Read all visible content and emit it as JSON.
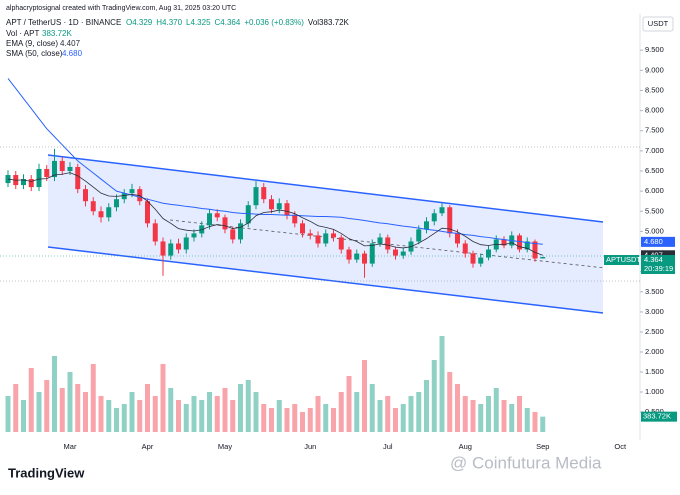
{
  "chart_data": {
    "type": "candlestick",
    "attribution": "alphacryptosignal created with TradingView.com, Aug 31, 2025 03:20 UTC",
    "symbol": "APT / TetherUS · 1D · BINANCE",
    "ohlc": [
      "O4.329",
      "H4.370",
      "L4.325",
      "C4.364",
      "+0.036 (+0.83%)",
      "Vol383.72K"
    ],
    "vol_legend": {
      "name": "Vol · APT",
      "value_label": "383.72K"
    },
    "ema": {
      "name": "EMA (9, close)",
      "color": "#2a2e39",
      "values": [
        6.3,
        6.27,
        6.28,
        6.24,
        6.3,
        6.31,
        6.4,
        6.42,
        6.46,
        6.38,
        6.25,
        6.1,
        5.95,
        5.88,
        5.87,
        5.89,
        5.92,
        5.89,
        5.75,
        5.55,
        5.32,
        5.2,
        5.07,
        5.03,
        5.01,
        5.04,
        5.12,
        5.17,
        5.14,
        5.07,
        5.1,
        5.21,
        5.39,
        5.47,
        5.49,
        5.53,
        5.5,
        5.44,
        5.34,
        5.25,
        5.14,
        5.1,
        5.05,
        4.95,
        4.82,
        4.75,
        4.64,
        4.65,
        4.69,
        4.66,
        4.61,
        4.59,
        4.62,
        4.71,
        4.82,
        4.95,
        5.08,
        5.06,
        4.99,
        4.88,
        4.75,
        4.67,
        4.65,
        4.68,
        4.67,
        4.72,
        4.62,
        4.58,
        4.48,
        4.407,
        null,
        null,
        null,
        null,
        null,
        null,
        null,
        null,
        null,
        null,
        null,
        null
      ]
    },
    "sma": {
      "name": "SMA (50, close)",
      "color": "#2962ff",
      "value_label": "4.680",
      "values": [
        8.8,
        8.55,
        8.3,
        8.05,
        7.8,
        7.55,
        7.35,
        7.15,
        6.95,
        6.75,
        6.6,
        6.45,
        6.3,
        6.15,
        6.0,
        5.95,
        5.9,
        5.85,
        5.8,
        5.75,
        5.7,
        5.67,
        5.65,
        5.62,
        5.6,
        5.57,
        5.55,
        5.52,
        5.5,
        5.47,
        5.45,
        5.44,
        5.43,
        5.42,
        5.42,
        5.41,
        5.4,
        5.4,
        5.39,
        5.38,
        5.37,
        5.37,
        5.36,
        5.35,
        5.32,
        5.3,
        5.27,
        5.24,
        5.21,
        5.19,
        5.16,
        5.13,
        5.11,
        5.08,
        5.05,
        5.03,
        5.0,
        4.97,
        4.95,
        4.92,
        4.9,
        4.87,
        4.85,
        4.82,
        4.8,
        4.77,
        4.75,
        4.72,
        4.7,
        4.68,
        null,
        null,
        null,
        null,
        null,
        null,
        null,
        null,
        null,
        null,
        null,
        null
      ]
    },
    "categories": [
      null,
      null,
      null,
      null,
      null,
      null,
      null,
      null,
      "Mar",
      null,
      null,
      null,
      null,
      null,
      null,
      null,
      null,
      null,
      "Apr",
      null,
      null,
      null,
      null,
      null,
      null,
      null,
      null,
      null,
      "May",
      null,
      null,
      null,
      null,
      null,
      null,
      null,
      null,
      null,
      null,
      "Jun",
      null,
      null,
      null,
      null,
      null,
      null,
      null,
      null,
      null,
      "Jul",
      null,
      null,
      null,
      null,
      null,
      null,
      null,
      null,
      null,
      "Aug",
      null,
      null,
      null,
      null,
      null,
      null,
      null,
      null,
      null,
      "Sep",
      null,
      null,
      null,
      null,
      null,
      null,
      null,
      null,
      null,
      "Oct",
      null,
      null
    ],
    "open": [
      6.2,
      6.4,
      6.15,
      6.3,
      6.1,
      6.55,
      6.35,
      6.75,
      6.5,
      6.6,
      6.05,
      5.75,
      5.5,
      5.35,
      5.6,
      5.8,
      5.95,
      6.05,
      5.75,
      5.2,
      4.75,
      4.4,
      4.7,
      4.55,
      4.85,
      4.95,
      5.15,
      5.45,
      5.35,
      5.05,
      4.8,
      5.2,
      5.65,
      6.1,
      5.8,
      5.55,
      5.7,
      5.4,
      5.2,
      4.95,
      4.9,
      4.7,
      4.95,
      4.85,
      4.55,
      4.3,
      4.45,
      4.2,
      4.7,
      4.85,
      4.55,
      4.4,
      4.5,
      4.75,
      5.05,
      5.25,
      5.45,
      5.6,
      4.95,
      4.7,
      4.45,
      4.2,
      4.35,
      4.55,
      4.8,
      4.65,
      4.9,
      4.55,
      4.75,
      4.329,
      null,
      null,
      null,
      null,
      null,
      null,
      null,
      null,
      null,
      null,
      null,
      null
    ],
    "high": [
      6.52,
      6.5,
      6.42,
      6.4,
      6.68,
      6.65,
      7.05,
      6.85,
      6.72,
      6.68,
      6.15,
      5.85,
      5.62,
      5.7,
      5.92,
      6.05,
      6.18,
      6.12,
      5.82,
      5.3,
      4.85,
      4.8,
      4.82,
      4.95,
      5.05,
      5.25,
      5.55,
      5.55,
      5.42,
      5.12,
      5.3,
      5.75,
      6.25,
      6.2,
      5.9,
      5.82,
      5.78,
      5.5,
      5.28,
      5.05,
      5.0,
      5.05,
      5.05,
      4.92,
      4.62,
      4.55,
      4.52,
      4.8,
      4.95,
      4.92,
      4.62,
      4.6,
      4.85,
      5.15,
      5.35,
      5.55,
      5.7,
      5.65,
      5.05,
      4.78,
      4.52,
      4.45,
      4.65,
      4.9,
      4.88,
      5.0,
      4.95,
      4.85,
      4.8,
      4.37,
      null,
      null,
      null,
      null,
      null,
      null,
      null,
      null,
      null,
      null,
      null,
      null
    ],
    "low": [
      6.1,
      6.05,
      6.05,
      6.0,
      6.0,
      6.25,
      6.25,
      6.4,
      6.4,
      5.95,
      5.62,
      5.4,
      5.22,
      5.25,
      5.5,
      5.7,
      5.85,
      5.65,
      5.1,
      4.65,
      3.9,
      4.3,
      4.45,
      4.45,
      4.75,
      4.85,
      5.05,
      5.25,
      4.95,
      4.7,
      4.7,
      5.1,
      5.55,
      5.7,
      5.45,
      5.45,
      5.3,
      5.1,
      4.85,
      4.8,
      4.6,
      4.62,
      4.75,
      4.45,
      4.2,
      4.22,
      3.85,
      4.12,
      4.62,
      4.45,
      4.3,
      4.32,
      4.42,
      4.68,
      4.95,
      5.15,
      5.38,
      4.85,
      4.6,
      4.35,
      4.1,
      4.12,
      4.28,
      4.48,
      4.58,
      4.58,
      4.48,
      4.48,
      4.25,
      4.325,
      null,
      null,
      null,
      null,
      null,
      null,
      null,
      null,
      null,
      null,
      null,
      null
    ],
    "close": [
      6.4,
      6.15,
      6.3,
      6.1,
      6.55,
      6.35,
      6.75,
      6.5,
      6.6,
      6.05,
      5.75,
      5.5,
      5.35,
      5.6,
      5.8,
      5.95,
      6.05,
      5.75,
      5.2,
      4.75,
      4.4,
      4.7,
      4.55,
      4.85,
      4.95,
      5.15,
      5.45,
      5.35,
      5.05,
      4.8,
      5.2,
      5.65,
      6.1,
      5.8,
      5.55,
      5.7,
      5.4,
      5.2,
      4.95,
      4.9,
      4.7,
      4.95,
      4.85,
      4.55,
      4.3,
      4.45,
      4.2,
      4.7,
      4.85,
      4.55,
      4.4,
      4.5,
      4.75,
      5.05,
      5.25,
      5.45,
      5.6,
      4.95,
      4.7,
      4.45,
      4.2,
      4.35,
      4.55,
      4.8,
      4.65,
      4.9,
      4.55,
      4.75,
      4.328,
      4.364,
      null,
      null,
      null,
      null,
      null,
      null,
      null,
      null,
      null,
      null,
      null,
      null
    ],
    "volume": [
      0.9,
      1.2,
      0.8,
      1.6,
      1.0,
      1.3,
      1.9,
      1.1,
      1.5,
      1.2,
      1.0,
      1.7,
      0.9,
      0.8,
      0.6,
      0.7,
      1.0,
      0.8,
      1.2,
      0.9,
      1.7,
      1.1,
      0.8,
      0.7,
      0.9,
      0.8,
      1.0,
      0.9,
      1.1,
      0.8,
      1.2,
      1.3,
      1.0,
      0.7,
      0.6,
      0.8,
      0.6,
      0.7,
      0.5,
      0.6,
      0.9,
      0.7,
      0.6,
      1.0,
      1.4,
      1.0,
      1.8,
      1.2,
      0.8,
      0.9,
      0.6,
      0.7,
      0.9,
      1.0,
      1.3,
      1.8,
      2.4,
      1.5,
      1.2,
      0.9,
      0.8,
      0.7,
      0.9,
      1.1,
      0.8,
      0.7,
      0.9,
      0.6,
      0.5,
      0.38372,
      null,
      null,
      null,
      null,
      null,
      null,
      null,
      null,
      null,
      null,
      null,
      null
    ],
    "up_color": "#089981",
    "down_color": "#f23645",
    "ylim": [
      2.75,
      10.25
    ],
    "yticks": [
      {
        "value": 9.5,
        "label": "9.500"
      },
      {
        "value": 9,
        "label": "9.000"
      },
      {
        "value": 8.5,
        "label": "8.500"
      },
      {
        "value": 8,
        "label": "8.000"
      },
      {
        "value": 7.5,
        "label": "7.500"
      },
      {
        "value": 7,
        "label": "7.000"
      },
      {
        "value": 6.5,
        "label": "6.500"
      },
      {
        "value": 6,
        "label": "6.000"
      },
      {
        "value": 5.5,
        "label": "5.500"
      },
      {
        "value": 5,
        "label": "5.000"
      },
      {
        "value": 4,
        "label": "4.000"
      },
      {
        "value": 3.5,
        "label": "3.500"
      },
      {
        "value": 3,
        "label": "3.000"
      }
    ],
    "vlim": [
      0,
      2.75
    ],
    "vticks": [
      {
        "value": 2.5,
        "label": "2.500"
      },
      {
        "value": 2,
        "label": "2.000"
      },
      {
        "value": 1.5,
        "label": "1.500"
      },
      {
        "value": 1,
        "label": "1.000"
      },
      {
        "value": 0.5,
        "label": "0.500"
      }
    ],
    "currency": "USDT",
    "ticker": "APTUSDT",
    "countdown": "20:39:19",
    "brand": "TradingView",
    "watermark": "@ Coinfutura Media"
  }
}
